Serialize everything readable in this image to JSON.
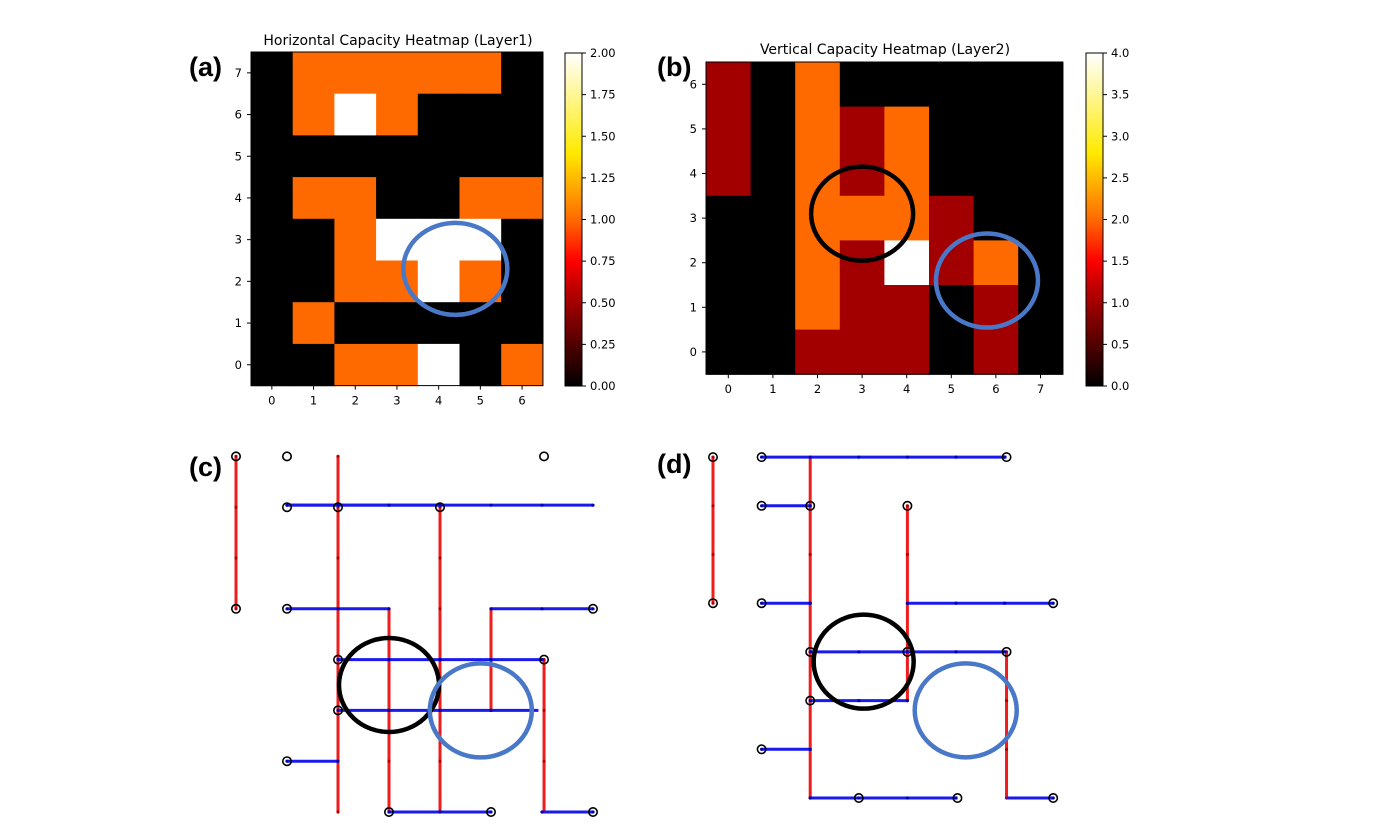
{
  "panels": [
    {
      "label": "(a)",
      "title": "Horizontal Capacity Heatmap (Layer1)"
    },
    {
      "label": "(b)",
      "title": "Vertical Capacity Heatmap (Layer2)"
    },
    {
      "label": "(c)"
    },
    {
      "label": "(d)"
    }
  ],
  "colors": {
    "h_route": "#1a1aee",
    "v_route": "#ee1c1c",
    "circle_black": "#000000",
    "circle_blue": "#4a78c8"
  },
  "chart_data": [
    {
      "type": "heatmap",
      "title": "Horizontal Capacity Heatmap (Layer1)",
      "x": [
        0,
        1,
        2,
        3,
        4,
        5,
        6
      ],
      "y": [
        0,
        1,
        2,
        3,
        4,
        5,
        6,
        7
      ],
      "colormap": "hot",
      "clim": [
        0,
        2
      ],
      "colorbar_ticks": [
        "0.00",
        "0.25",
        "0.50",
        "0.75",
        "1.00",
        "1.25",
        "1.50",
        "1.75",
        "2.00"
      ],
      "rows_y7_to_y0": [
        [
          0,
          1,
          1,
          1,
          1,
          1,
          0
        ],
        [
          0,
          1,
          2,
          1,
          0,
          0,
          0
        ],
        [
          0,
          0,
          0,
          0,
          0,
          0,
          0
        ],
        [
          0,
          1,
          1,
          0,
          0,
          1,
          1
        ],
        [
          0,
          0,
          1,
          2,
          2,
          2,
          0
        ],
        [
          0,
          0,
          1,
          1,
          2,
          1,
          0
        ],
        [
          0,
          1,
          0,
          0,
          0,
          0,
          0
        ],
        [
          0,
          0,
          1,
          1,
          2,
          0,
          1
        ]
      ],
      "annotations": [
        {
          "shape": "ellipse",
          "color": "blue",
          "center": [
            4.4,
            2.3
          ]
        }
      ]
    },
    {
      "type": "heatmap",
      "title": "Vertical Capacity Heatmap (Layer2)",
      "x": [
        0,
        1,
        2,
        3,
        4,
        5,
        6,
        7
      ],
      "y": [
        0,
        1,
        2,
        3,
        4,
        5,
        6
      ],
      "colormap": "hot",
      "clim": [
        0,
        4
      ],
      "colorbar_ticks": [
        "0.0",
        "0.5",
        "1.0",
        "1.5",
        "2.0",
        "2.5",
        "3.0",
        "3.5",
        "4.0"
      ],
      "rows_y6_to_y0": [
        [
          1,
          0,
          2,
          0,
          0,
          0,
          0,
          0
        ],
        [
          1,
          0,
          2,
          1,
          2,
          0,
          0,
          0
        ],
        [
          1,
          0,
          2,
          1,
          2,
          0,
          0,
          0
        ],
        [
          0,
          0,
          2,
          2,
          2,
          1,
          0,
          0
        ],
        [
          0,
          0,
          2,
          1,
          4,
          1,
          2,
          0
        ],
        [
          0,
          0,
          2,
          1,
          1,
          0,
          1,
          0
        ],
        [
          0,
          0,
          1,
          1,
          1,
          0,
          1,
          0
        ]
      ],
      "annotations": [
        {
          "shape": "ellipse",
          "color": "black",
          "center": [
            3.0,
            3.1
          ]
        },
        {
          "shape": "ellipse",
          "color": "blue",
          "center": [
            5.8,
            1.6
          ]
        }
      ]
    },
    {
      "type": "routing",
      "grid_x": [
        0,
        1,
        2,
        3,
        4,
        5,
        6,
        7
      ],
      "grid_y": [
        0,
        1,
        2,
        3,
        4,
        5,
        6,
        7
      ],
      "horizontal_segments": [
        [
          1,
          7,
          6.04
        ],
        [
          1,
          4,
          6.04
        ],
        [
          1,
          3,
          4
        ],
        [
          2,
          6.04,
          3
        ],
        [
          2,
          5.93,
          2
        ],
        [
          1,
          2,
          1
        ],
        [
          3,
          5,
          0
        ],
        [
          6,
          7,
          0
        ],
        [
          5,
          7,
          4
        ]
      ],
      "vertical_segments": [
        [
          0,
          4,
          7
        ],
        [
          2,
          0,
          7
        ],
        [
          3,
          0,
          4
        ],
        [
          4,
          0,
          6
        ],
        [
          5,
          2,
          4
        ],
        [
          6.04,
          0,
          3
        ]
      ],
      "pins": [
        [
          0,
          7
        ],
        [
          0,
          4
        ],
        [
          1,
          7
        ],
        [
          6.04,
          7
        ],
        [
          1,
          6
        ],
        [
          4,
          6
        ],
        [
          2,
          6
        ],
        [
          1,
          4
        ],
        [
          7,
          4
        ],
        [
          2,
          3
        ],
        [
          6.04,
          3
        ],
        [
          2,
          2
        ],
        [
          1,
          1
        ],
        [
          3,
          0
        ],
        [
          5,
          0
        ],
        [
          7,
          0
        ]
      ],
      "annotations": [
        {
          "shape": "circle",
          "color": "black",
          "center": [
            3,
            2.5
          ]
        },
        {
          "shape": "circle",
          "color": "blue",
          "center": [
            4.8,
            2.0
          ]
        }
      ]
    },
    {
      "type": "routing",
      "grid_x": [
        0,
        1,
        2,
        3,
        4,
        5,
        6,
        7
      ],
      "grid_y": [
        0,
        1,
        2,
        3,
        4,
        5,
        6,
        7
      ],
      "horizontal_segments": [
        [
          1,
          6.04,
          7
        ],
        [
          1,
          2,
          6
        ],
        [
          1,
          2,
          4
        ],
        [
          4,
          7,
          4
        ],
        [
          2,
          6.04,
          3
        ],
        [
          2,
          4,
          2
        ],
        [
          1,
          2,
          1
        ],
        [
          2,
          5.03,
          0
        ],
        [
          6.04,
          7,
          0
        ]
      ],
      "vertical_segments": [
        [
          0,
          4,
          7
        ],
        [
          2,
          0,
          7
        ],
        [
          4,
          2,
          6
        ],
        [
          6.04,
          0,
          3
        ]
      ],
      "pins": [
        [
          0,
          7
        ],
        [
          0,
          4
        ],
        [
          1,
          7
        ],
        [
          6.04,
          7
        ],
        [
          1,
          6
        ],
        [
          2,
          6
        ],
        [
          4,
          6
        ],
        [
          1,
          4
        ],
        [
          7,
          4
        ],
        [
          2,
          3
        ],
        [
          4,
          3
        ],
        [
          6.04,
          3
        ],
        [
          2,
          2
        ],
        [
          1,
          1
        ],
        [
          3,
          0
        ],
        [
          5.03,
          0
        ],
        [
          7,
          0
        ]
      ],
      "annotations": [
        {
          "shape": "circle",
          "color": "black",
          "center": [
            3.1,
            2.8
          ]
        },
        {
          "shape": "circle",
          "color": "blue",
          "center": [
            5.2,
            1.8
          ]
        }
      ]
    }
  ]
}
